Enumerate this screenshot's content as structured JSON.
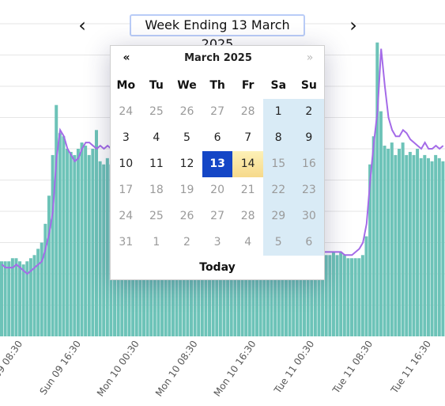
{
  "header": {
    "title": "Week Ending 13 March 2025",
    "prev_label": "‹",
    "next_label": "›",
    "prev_icon": "chevron-left-icon",
    "next_icon": "chevron-right-icon"
  },
  "calendar": {
    "month_label": "March 2025",
    "prev_label": "«",
    "next_label": "»",
    "today_label": "Today",
    "weekdays": [
      "Mo",
      "Tu",
      "We",
      "Th",
      "Fr",
      "Sa",
      "Su"
    ],
    "selected_day": "13",
    "highlight_day": "14",
    "weeks": [
      [
        "24",
        "25",
        "26",
        "27",
        "28",
        "1",
        "2"
      ],
      [
        "3",
        "4",
        "5",
        "6",
        "7",
        "8",
        "9"
      ],
      [
        "10",
        "11",
        "12",
        "13",
        "14",
        "15",
        "16"
      ],
      [
        "17",
        "18",
        "19",
        "20",
        "21",
        "22",
        "23"
      ],
      [
        "24",
        "25",
        "26",
        "27",
        "28",
        "29",
        "30"
      ],
      [
        "31",
        "1",
        "2",
        "3",
        "4",
        "5",
        "6"
      ]
    ],
    "muted": [
      [
        true,
        true,
        true,
        true,
        true,
        false,
        false
      ],
      [
        false,
        false,
        false,
        false,
        false,
        false,
        false
      ],
      [
        false,
        false,
        false,
        false,
        false,
        true,
        true
      ],
      [
        true,
        true,
        true,
        true,
        true,
        true,
        true
      ],
      [
        true,
        true,
        true,
        true,
        true,
        true,
        true
      ],
      [
        true,
        true,
        true,
        true,
        true,
        true,
        true
      ]
    ],
    "colors": {
      "selected": "#1446c6",
      "highlight": "#f6d98a",
      "weekend": "#d9ebf6"
    }
  },
  "chart_data": {
    "type": "bar",
    "x_tick_labels": [
      "Sun 09 08:30",
      "Sun 09 16:30",
      "Mon 10 00:30",
      "Mon 10 08:30",
      "Mon 10 16:30",
      "Tue 11 00:30",
      "Tue 11 08:30",
      "Tue 11 16:30"
    ],
    "x_tick_index": [
      4,
      20,
      36,
      52,
      68,
      84,
      100,
      116
    ],
    "ylim": [
      0,
      100
    ],
    "grid": true,
    "bars": [
      24,
      24,
      24,
      25,
      25,
      24,
      23,
      24,
      25,
      26,
      28,
      30,
      36,
      45,
      58,
      74,
      65,
      64,
      60,
      59,
      58,
      60,
      62,
      61,
      58,
      60,
      66,
      56,
      55,
      57,
      55,
      63,
      62,
      58,
      57,
      59,
      60,
      62,
      58,
      56,
      58,
      44,
      40,
      32,
      30,
      27,
      26,
      26,
      25,
      25,
      26,
      27,
      28,
      28,
      27,
      26,
      27,
      26,
      26,
      27,
      27,
      28,
      27,
      26,
      25,
      26,
      27,
      27,
      27,
      28,
      28,
      28,
      29,
      29,
      28,
      28,
      29,
      30,
      30,
      29,
      28,
      29,
      29,
      28,
      28,
      28,
      27,
      27,
      27,
      26,
      26,
      27,
      26,
      27,
      26,
      25,
      25,
      25,
      25,
      26,
      32,
      55,
      64,
      94,
      72,
      61,
      60,
      62,
      58,
      60,
      62,
      58,
      59,
      58,
      60,
      57,
      58,
      57,
      56,
      58,
      57,
      56
    ],
    "line": [
      23,
      22,
      22,
      22,
      23,
      22,
      21,
      20,
      21,
      22,
      23,
      24,
      28,
      33,
      40,
      57,
      66,
      64,
      60,
      58,
      56,
      57,
      60,
      62,
      62,
      61,
      60,
      61,
      60,
      61,
      60,
      59,
      60,
      61,
      60,
      61,
      60,
      60,
      58,
      57,
      53,
      44,
      40,
      34,
      31,
      28,
      26,
      24,
      23,
      23,
      22,
      22,
      22,
      22,
      22,
      23,
      23,
      24,
      25,
      26,
      27,
      27,
      27,
      26,
      26,
      27,
      27,
      27,
      27,
      28,
      28,
      28,
      28,
      29,
      28,
      28,
      28,
      29,
      29,
      28,
      28,
      28,
      28,
      28,
      28,
      27,
      27,
      27,
      27,
      27,
      27,
      27,
      27,
      27,
      26,
      26,
      26,
      27,
      28,
      30,
      36,
      50,
      62,
      72,
      92,
      80,
      70,
      66,
      64,
      64,
      66,
      65,
      63,
      62,
      61,
      60,
      62,
      60,
      60,
      61,
      60,
      61
    ],
    "colors": {
      "bars": "#6dc3b8",
      "line": "#a46be8",
      "grid": "#e6e6e6"
    }
  }
}
